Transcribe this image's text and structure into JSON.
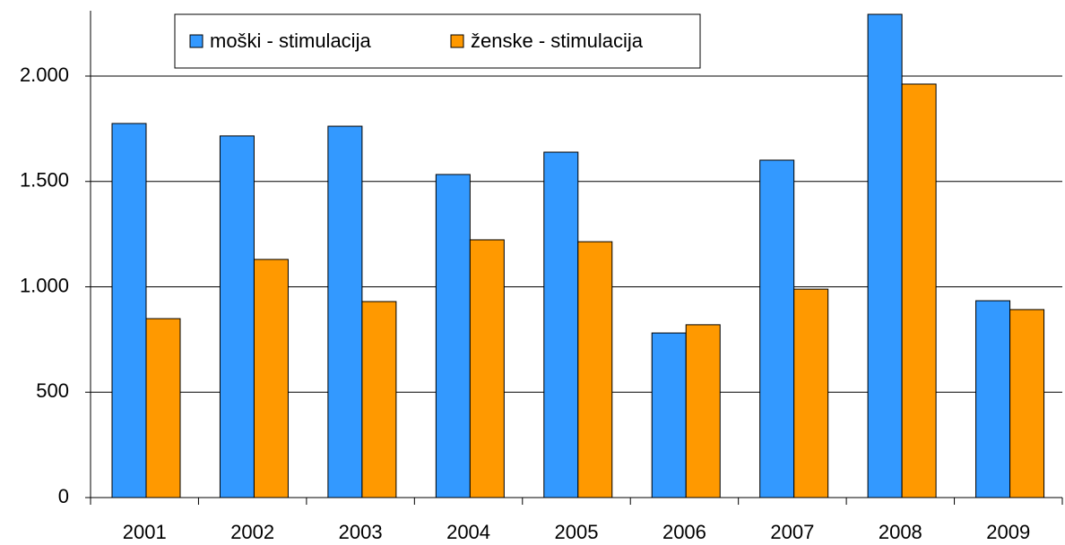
{
  "chart_data": {
    "type": "bar",
    "categories": [
      "2001",
      "2002",
      "2003",
      "2004",
      "2005",
      "2006",
      "2007",
      "2008",
      "2009"
    ],
    "series": [
      {
        "name": "moški - stimulacija",
        "color": "#3399ff",
        "values": [
          1775,
          1716,
          1762,
          1533,
          1639,
          781,
          1601,
          2293,
          934
        ]
      },
      {
        "name": "ženske - stimulacija",
        "color": "#ff9900",
        "values": [
          849,
          1130,
          930,
          1223,
          1214,
          820,
          989,
          1962,
          892
        ]
      }
    ],
    "ylim": [
      0,
      2310
    ],
    "yticks": [
      0,
      500,
      {
        "value": 1000,
        "label": "1.000"
      },
      {
        "value": 1500,
        "label": "1.500"
      },
      {
        "value": 2000,
        "label": "2.000"
      }
    ],
    "grid": true,
    "legend": "top"
  }
}
